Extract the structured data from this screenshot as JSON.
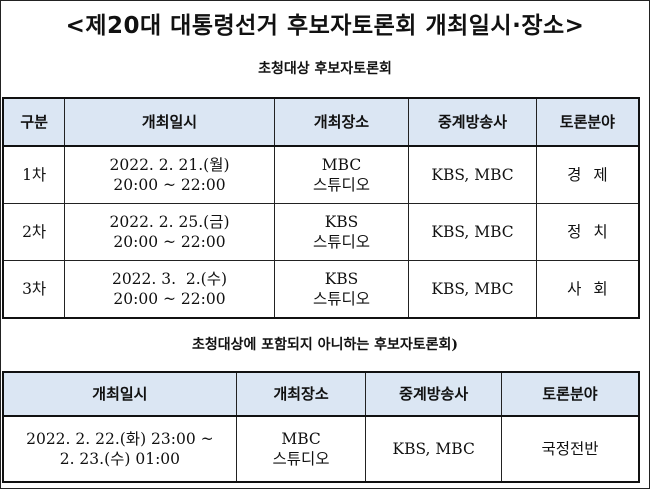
{
  "title": "<제20대 대통령선거 후보자토론회 개최일시·장소>",
  "section1": {
    "subtitle": "초청대상 후보자토론회",
    "headers": [
      "구분",
      "개최일시",
      "개최장소",
      "중계방송사",
      "토론분야"
    ],
    "rows": [
      {
        "round": "1차",
        "date": "2022. 2. 21.(월)",
        "time": "20:00 ~ 22:00",
        "venue1": "MBC",
        "venue2": "스튜디오",
        "broadcaster": "KBS, MBC",
        "topic": "경제"
      },
      {
        "round": "2차",
        "date": "2022. 2. 25.(금)",
        "time": "20:00 ~ 22:00",
        "venue1": "KBS",
        "venue2": "스튜디오",
        "broadcaster": "KBS, MBC",
        "topic": "정치"
      },
      {
        "round": "3차",
        "date": "2022. 3.  2.(수)",
        "time": "20:00 ~ 22:00",
        "venue1": "KBS",
        "venue2": "스튜디오",
        "broadcaster": "KBS, MBC",
        "topic": "사회"
      }
    ]
  },
  "section2": {
    "subtitle": "초청대상에 포함되지 아니하는 후보자토론회)",
    "headers": [
      "개최일시",
      "개최장소",
      "중계방송사",
      "토론분야"
    ],
    "row": {
      "datetime1": "2022. 2. 22.(화) 23:00 ~",
      "datetime2": "2. 23.(수) 01:00",
      "venue1": "MBC",
      "venue2": "스튜디오",
      "broadcaster": "KBS, MBC",
      "topic": "국정전반"
    }
  }
}
